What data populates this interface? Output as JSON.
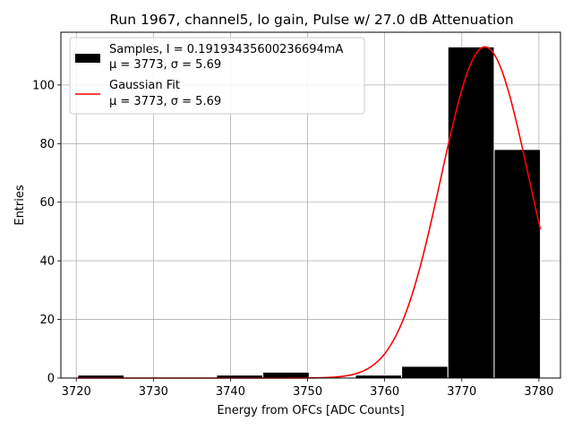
{
  "chart_data": {
    "type": "bar",
    "title": "Run 1967, channel5, lo gain, Pulse w/ 27.0 dB Attenuation",
    "xlabel": "Energy from OFCs [ADC Counts]",
    "ylabel": "Entries",
    "xlim": [
      3718.0,
      3782.8
    ],
    "ylim": [
      0,
      118
    ],
    "xticks": [
      3720,
      3730,
      3740,
      3750,
      3760,
      3770,
      3780
    ],
    "yticks": [
      0,
      20,
      40,
      60,
      80,
      100
    ],
    "grid": true,
    "legend_position": "upper left",
    "histogram": {
      "name": "Samples, I = 0.19193435600236694mA",
      "stats_label": "μ = 3773, σ = 5.69",
      "color": "#000000",
      "edge_color": "#ffffff",
      "bin_edges": [
        3720.2,
        3726.2,
        3732.2,
        3738.2,
        3744.2,
        3750.2,
        3756.2,
        3762.2,
        3768.2,
        3774.2,
        3780.2
      ],
      "counts": [
        1,
        0,
        0,
        1,
        2,
        0,
        1,
        4,
        113,
        78
      ]
    },
    "fit": {
      "name": "Gaussian Fit",
      "stats_label": "μ = 3773, σ = 5.69",
      "color": "#ff0000",
      "amplitude": 113,
      "mu": 3773,
      "sigma": 5.69,
      "x_range": [
        3720.2,
        3780.2
      ]
    }
  }
}
